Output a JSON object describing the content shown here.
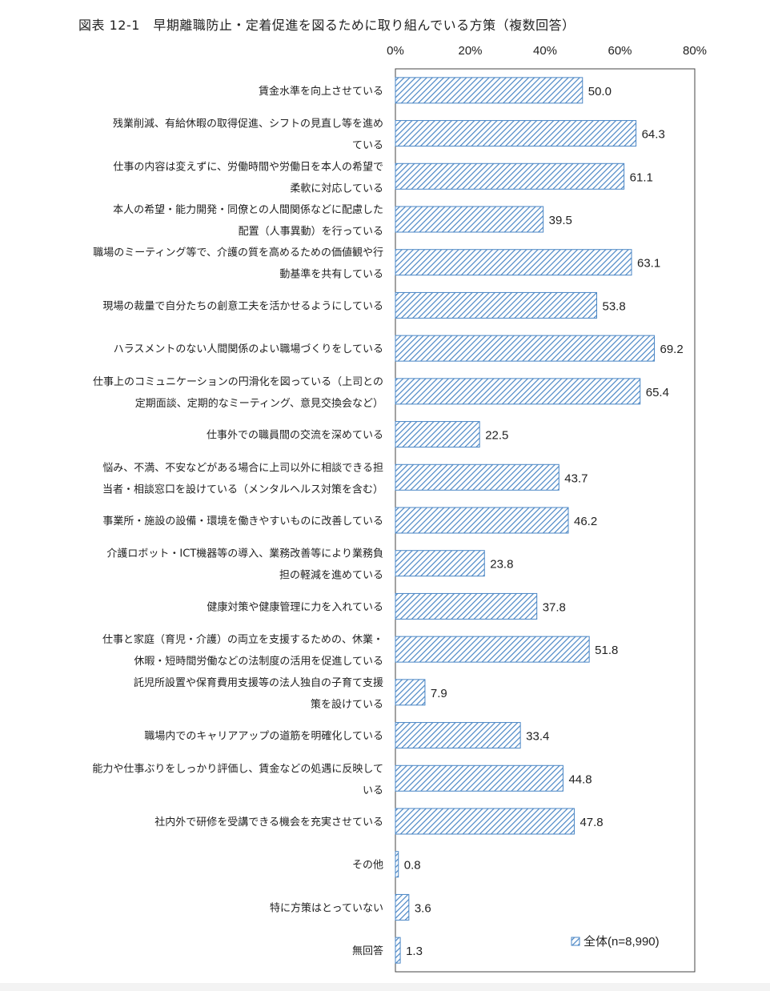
{
  "chart_data": {
    "type": "bar",
    "orientation": "horizontal",
    "title": "図表 12-1　早期離職防止・定着促進を図るために取り組んでいる方策（複数回答）",
    "xlim": [
      0,
      80
    ],
    "xticks": [
      "0%",
      "20%",
      "40%",
      "60%",
      "80%"
    ],
    "grid": false,
    "legend_position": "bottom-right",
    "bar_fill": "diagonal-hatch",
    "bar_color": "#4a86c5",
    "categories": [
      "賃金水準を向上させている",
      "残業削減、有給休暇の取得促進、シフトの見直し等を進めている",
      "仕事の内容は変えずに、労働時間や労働日を本人の希望で柔軟に対応している",
      "本人の希望・能力開発・同僚との人間関係などに配慮した配置（人事異動）を行っている",
      "職場のミーティング等で、介護の質を高めるための価値観や行動基準を共有している",
      "現場の裁量で自分たちの創意工夫を活かせるようにしている",
      "ハラスメントのない人間関係のよい職場づくりをしている",
      "仕事上のコミュニケーションの円滑化を図っている（上司との定期面談、定期的なミーティング、意見交換会など）",
      "仕事外での職員間の交流を深めている",
      "悩み、不満、不安などがある場合に上司以外に相談できる担当者・相談窓口を設けている（メンタルヘルス対策を含む）",
      "事業所・施設の設備・環境を働きやすいものに改善している",
      "介護ロボット・ICT機器等の導入、業務改善等により業務負担の軽減を進めている",
      "健康対策や健康管理に力を入れている",
      "仕事と家庭（育児・介護）の両立を支援するための、休業・休暇・短時間労働などの法制度の活用を促進している",
      "託児所設置や保育費用支援等の法人独自の子育て支援策を設けている",
      "職場内でのキャリアアップの道筋を明確化している",
      "能力や仕事ぶりをしっかり評価し、賃金などの処遇に反映している",
      "社内外で研修を受講できる機会を充実させている",
      "その他",
      "特に方策はとっていない",
      "無回答"
    ],
    "category_lines": [
      [
        "賃金水準を向上させている"
      ],
      [
        "残業削減、有給休暇の取得促進、シフトの見直し等を進め",
        "ている"
      ],
      [
        "仕事の内容は変えずに、労働時間や労働日を本人の希望で",
        "柔軟に対応している"
      ],
      [
        "本人の希望・能力開発・同僚との人間関係などに配慮した",
        "配置（人事異動）を行っている"
      ],
      [
        "職場のミーティング等で、介護の質を高めるための価値観や行",
        "動基準を共有している"
      ],
      [
        "現場の裁量で自分たちの創意工夫を活かせるようにしている"
      ],
      [
        "ハラスメントのない人間関係のよい職場づくりをしている"
      ],
      [
        "仕事上のコミュニケーションの円滑化を図っている（上司との",
        "定期面談、定期的なミーティング、意見交換会など）"
      ],
      [
        "仕事外での職員間の交流を深めている"
      ],
      [
        "悩み、不満、不安などがある場合に上司以外に相談できる担",
        "当者・相談窓口を設けている（メンタルヘルス対策を含む）"
      ],
      [
        "事業所・施設の設備・環境を働きやすいものに改善している"
      ],
      [
        "介護ロボット・ICT機器等の導入、業務改善等により業務負",
        "担の軽減を進めている"
      ],
      [
        "健康対策や健康管理に力を入れている"
      ],
      [
        "仕事と家庭（育児・介護）の両立を支援するための、休業・",
        "休暇・短時間労働などの法制度の活用を促進している"
      ],
      [
        "託児所設置や保育費用支援等の法人独自の子育て支援",
        "策を設けている"
      ],
      [
        "職場内でのキャリアアップの道筋を明確化している"
      ],
      [
        "能力や仕事ぶりをしっかり評価し、賃金などの処遇に反映して",
        "いる"
      ],
      [
        "社内外で研修を受講できる機会を充実させている"
      ],
      [
        "その他"
      ],
      [
        "特に方策はとっていない"
      ],
      [
        "無回答"
      ]
    ],
    "series": [
      {
        "name": "全体(n=8,990)",
        "values": [
          50.0,
          64.3,
          61.1,
          39.5,
          63.1,
          53.8,
          69.2,
          65.4,
          22.5,
          43.7,
          46.2,
          23.8,
          37.8,
          51.8,
          7.9,
          33.4,
          44.8,
          47.8,
          0.8,
          3.6,
          1.3
        ],
        "value_labels": [
          "50.0",
          "64.3",
          "61.1",
          "39.5",
          "63.1",
          "53.8",
          "69.2",
          "65.4",
          "22.5",
          "43.7",
          "46.2",
          "23.8",
          "37.8",
          "51.8",
          "7.9",
          "33.4",
          "44.8",
          "47.8",
          "0.8",
          "3.6",
          "1.3"
        ]
      }
    ]
  }
}
